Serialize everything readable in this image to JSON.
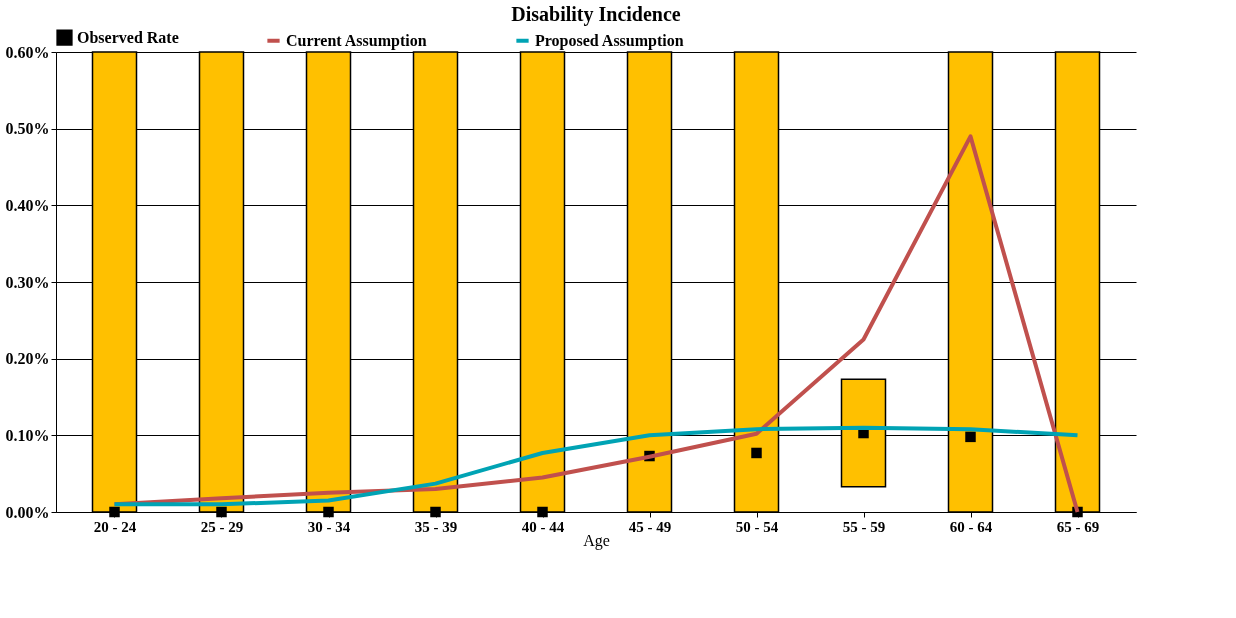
{
  "chart_data": {
    "type": "bar",
    "title": "Disability Incidence",
    "xlabel": "Age",
    "categories": [
      "20 - 24",
      "25 - 29",
      "30 - 34",
      "35 - 39",
      "40 - 44",
      "45 - 49",
      "50 - 54",
      "55 - 59",
      "60 - 64",
      "65 - 69"
    ],
    "series": [
      {
        "type": "bar",
        "color": "#ffc000",
        "base": [
          0,
          0,
          0,
          0,
          0,
          0,
          0,
          0.033,
          0,
          0
        ],
        "values": [
          0.6,
          0.6,
          0.6,
          0.6,
          0.6,
          0.6,
          0.6,
          0.14,
          0.6,
          0.6
        ]
      },
      {
        "type": "scatter",
        "name": "Observed Rate",
        "color": "#000000",
        "marker": "square",
        "values": [
          0,
          0,
          0,
          0,
          0,
          0.073,
          0.077,
          0.103,
          0.098,
          0
        ]
      },
      {
        "type": "line",
        "name": "Current Assumption",
        "color": "#c0504d",
        "values": [
          0.01,
          0.018,
          0.025,
          0.03,
          0.045,
          0.072,
          0.102,
          0.225,
          0.49,
          0
        ]
      },
      {
        "type": "line",
        "name": "Proposed Assumption",
        "color": "#00a3b4",
        "values": [
          0.01,
          0.01,
          0.015,
          0.037,
          0.077,
          0.1,
          0.108,
          0.11,
          0.108,
          0.1
        ]
      }
    ],
    "ylim": [
      0,
      0.6
    ],
    "yticks": [
      {
        "value": 0,
        "label": "0.00%"
      },
      {
        "value": 0.1,
        "label": "0.10%"
      },
      {
        "value": 0.2,
        "label": "0.20%"
      },
      {
        "value": 0.3,
        "label": "0.30%"
      },
      {
        "value": 0.4,
        "label": "0.40%"
      },
      {
        "value": 0.5,
        "label": "0.50%"
      },
      {
        "value": 0.6,
        "label": "0.60%"
      }
    ],
    "grid": "y",
    "legend": "top"
  }
}
